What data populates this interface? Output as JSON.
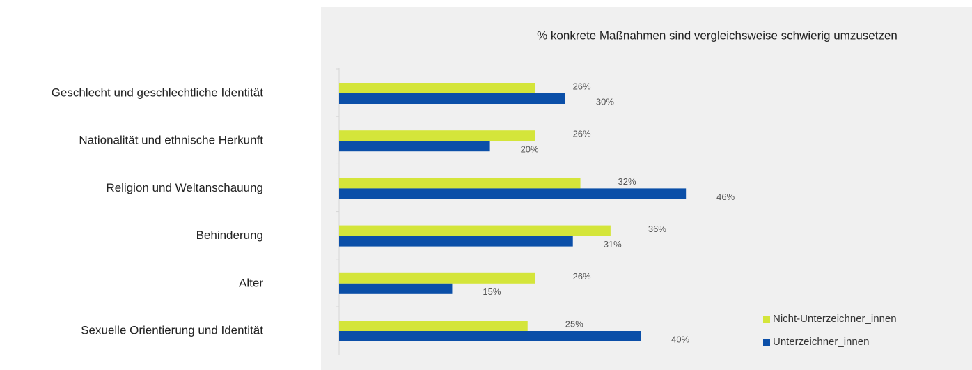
{
  "chart_data": {
    "type": "barh",
    "title": "% konkrete Maßnahmen sind vergleichsweise schwierig umzusetzen",
    "categories": [
      "Geschlecht und geschlechtliche Identität",
      "Nationalität und ethnische Herkunft",
      "Religion und Weltanschauung",
      "Behinderung",
      "Alter",
      "Sexuelle Orientierung und Identität"
    ],
    "series": [
      {
        "name": "Nicht-Unterzeichner_innen",
        "color": "#d4e53a",
        "values": [
          26,
          26,
          32,
          36,
          26,
          25
        ],
        "value_labels": [
          "26%",
          "26%",
          "32%",
          "36%",
          "26%",
          "25%"
        ]
      },
      {
        "name": "Unterzeichner_innen",
        "color": "#0b4fa8",
        "values": [
          30,
          20,
          46,
          31,
          15,
          40
        ],
        "value_labels": [
          "30%",
          "20%",
          "46%",
          "31%",
          "15%",
          "40%"
        ]
      }
    ],
    "legend": "lower right"
  }
}
